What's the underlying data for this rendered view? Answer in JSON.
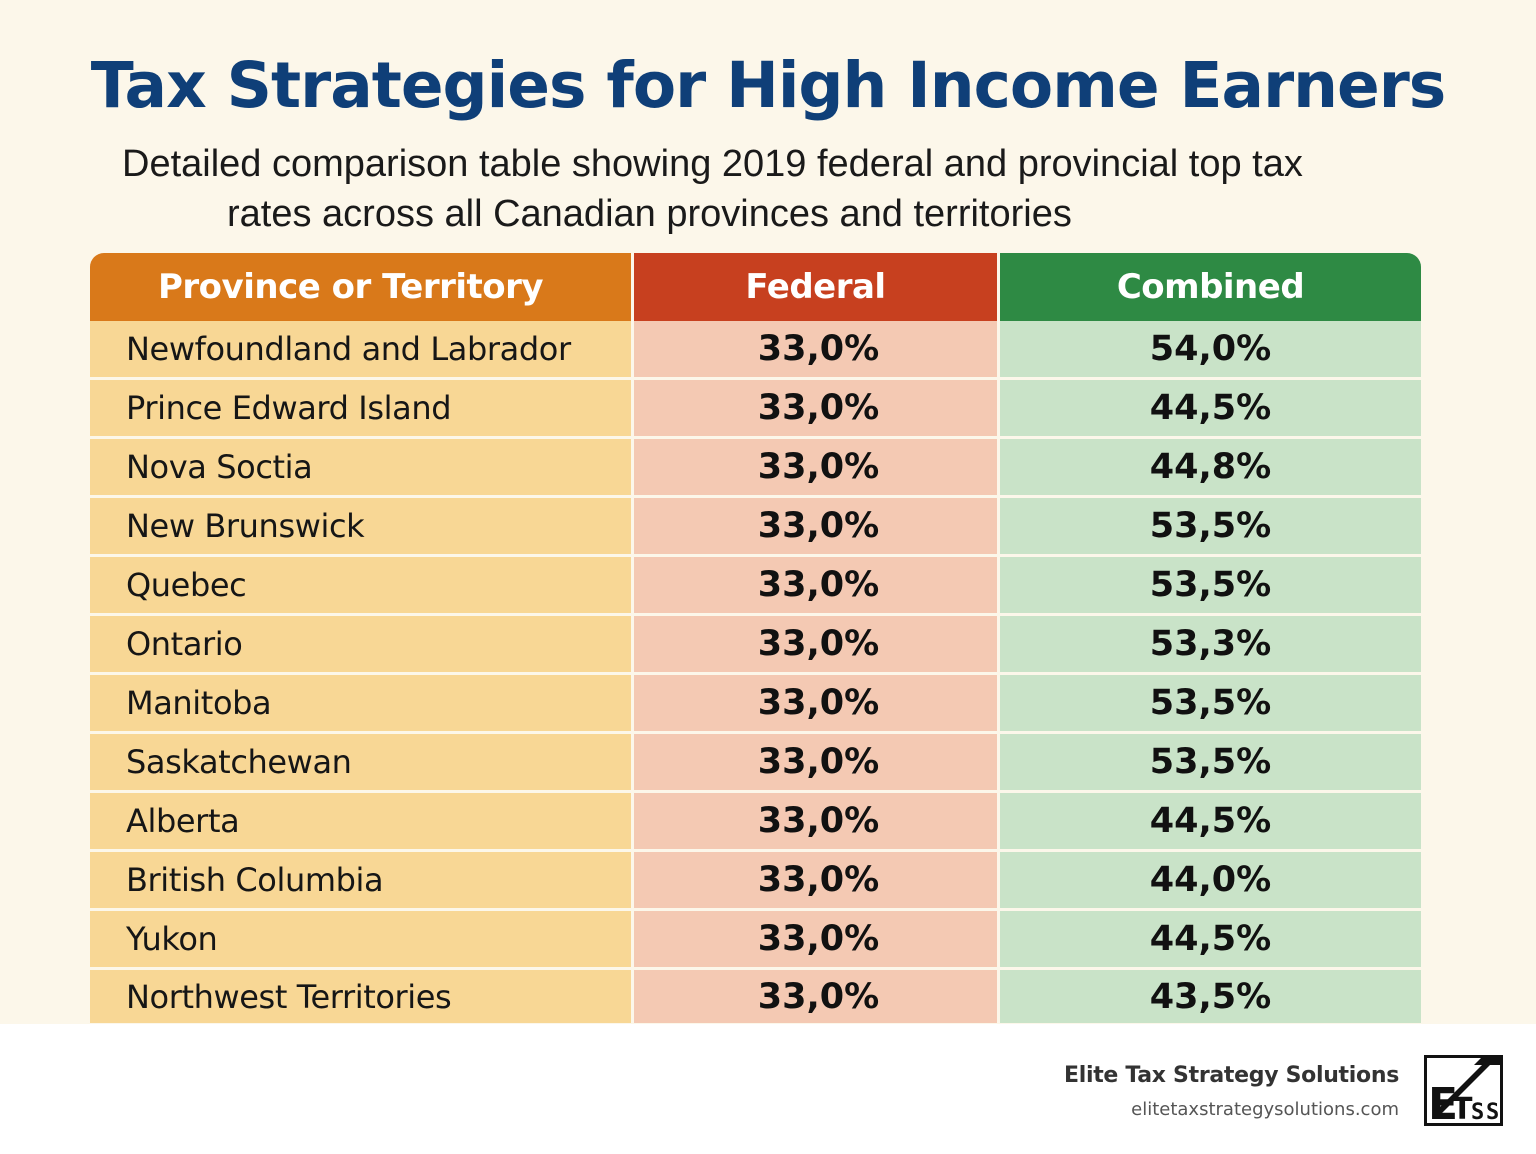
{
  "title": "Tax Strategies for High Income Earners",
  "subtitle": {
    "line1": "Detailed comparison table showing 2019 federal and provincial top tax",
    "line2": "rates across all Canadian provinces and territories"
  },
  "table": {
    "headers": [
      "Province or Territory",
      "Federal",
      "Combined"
    ],
    "rows": [
      {
        "province": "Newfoundland and Labrador",
        "federal": "33,0%",
        "combined": "54,0%"
      },
      {
        "province": "Prince Edward Island",
        "federal": "33,0%",
        "combined": "44,5%"
      },
      {
        "province": "Nova Soctia",
        "federal": "33,0%",
        "combined": "44,8%"
      },
      {
        "province": "New Brunswick",
        "federal": "33,0%",
        "combined": "53,5%"
      },
      {
        "province": "Quebec",
        "federal": "33,0%",
        "combined": "53,5%"
      },
      {
        "province": "Ontario",
        "federal": "33,0%",
        "combined": "53,3%"
      },
      {
        "province": "Manitoba",
        "federal": "33,0%",
        "combined": "53,5%"
      },
      {
        "province": "Saskatchewan",
        "federal": "33,0%",
        "combined": "53,5%"
      },
      {
        "province": "Alberta",
        "federal": "33,0%",
        "combined": "44,5%"
      },
      {
        "province": "British Columbia",
        "federal": "33,0%",
        "combined": "44,0%"
      },
      {
        "province": "Yukon",
        "federal": "33,0%",
        "combined": "44,5%"
      },
      {
        "province": "Northwest Territories",
        "federal": "33,0%",
        "combined": "43,5%"
      }
    ]
  },
  "brand": {
    "name": "Elite Tax Strategy Solutions",
    "url": "elitetaxstrategysolutions.com",
    "logo_text": "ETSS",
    "logo_icon": "etss-logo-icon"
  },
  "colors": {
    "title": "#0f3f78",
    "header_province": "#d9791a",
    "header_federal": "#c7401f",
    "header_combined": "#2e8a44",
    "cell_province": "#f8d795",
    "cell_federal": "#f4c9b3",
    "cell_combined": "#c9e3c8",
    "background": "#fcf7ea"
  }
}
